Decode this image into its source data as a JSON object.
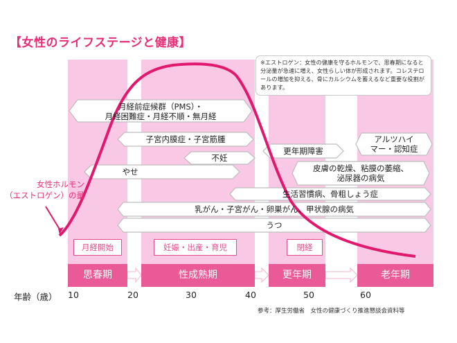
{
  "title": "【女性のライフステージと健康】",
  "note": "※エストロゲン：女性の健康を守るホルモンで、思春期になると分泌量が急速に増え、女性らしい体が形成されます。コレステロールの増加を抑える、骨にカルシウムを蓄えるなど重要な役割があります。",
  "hormone_label_line1": "女性ホルモン",
  "hormone_label_line2": "（エストロゲン）の量",
  "conditions": [
    {
      "line1": "月経前症候群（PMS）・",
      "line2": "月経困難症・月経不順・無月経"
    },
    {
      "text": "子宮内膜症・子宮筋腫"
    },
    {
      "text": "不妊"
    },
    {
      "text": "やせ"
    },
    {
      "text": "更年期障害"
    },
    {
      "line1": "アルツハイ",
      "line2": "マー・認知症"
    },
    {
      "line1": "皮膚の乾燥、粘膜の萎縮、",
      "line2": "泌尿器の病気"
    },
    {
      "text": "生活習慣病、骨粗しょう症"
    },
    {
      "text": "乳がん・子宮がん・卵巣がん、甲状腺の病気"
    },
    {
      "text": "うつ"
    }
  ],
  "events": [
    "月経開始",
    "妊娠・出産・育児",
    "閉経"
  ],
  "stages": [
    "思春期",
    "性成熟期",
    "更年期",
    "老年期"
  ],
  "axis_label": "年齢（歳）",
  "ticks": [
    "10",
    "20",
    "30",
    "40",
    "50",
    "60"
  ],
  "source": "参考：厚生労働省　女性の健康づくり推進懇談会資料等",
  "colors": {
    "accent": "#e62e78",
    "band": "#f8c8e4",
    "stage": "#ea5a96",
    "curve": "#e0186e"
  }
}
